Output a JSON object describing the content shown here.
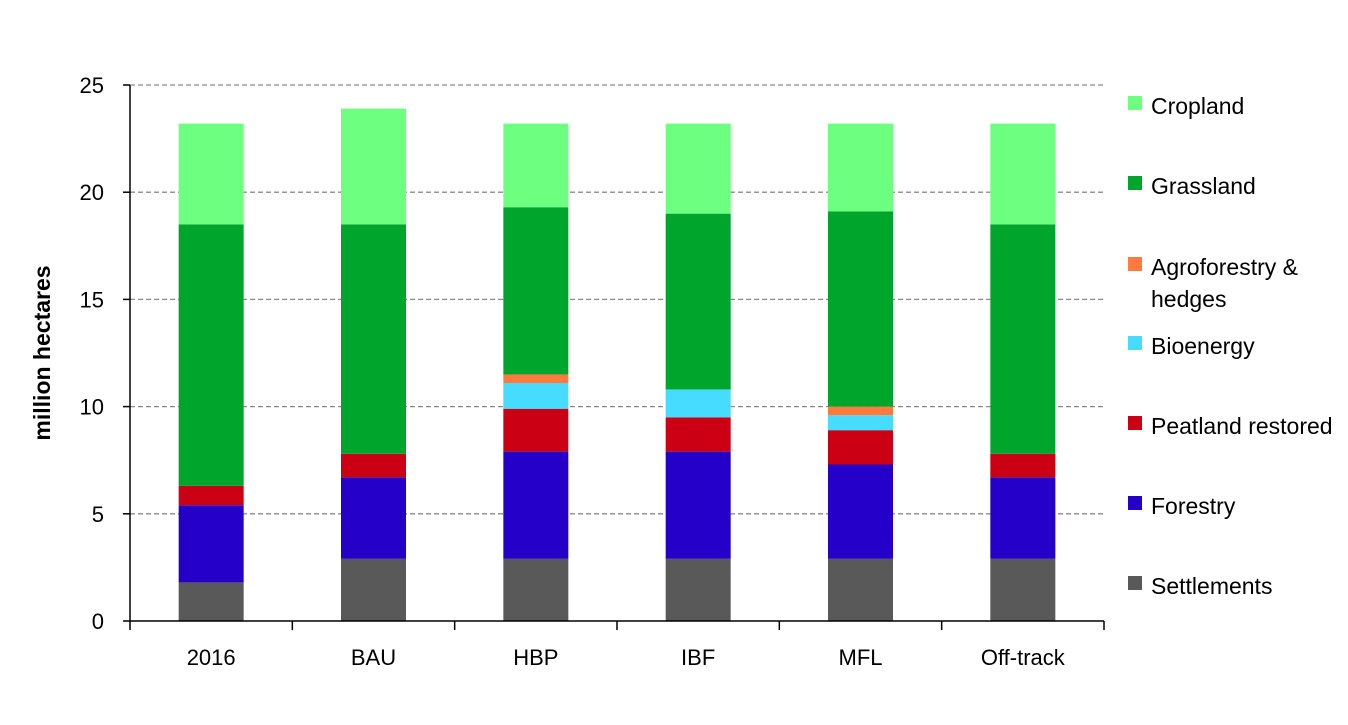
{
  "chart_data": {
    "type": "bar",
    "stacked": true,
    "ylabel": "million hectares",
    "ylim": [
      0,
      25
    ],
    "yticks": [
      0,
      5,
      10,
      15,
      20,
      25
    ],
    "grid": true,
    "legend_placement": "right",
    "categories": [
      "2016",
      "BAU",
      "HBP",
      "IBF",
      "MFL",
      "Off-track"
    ],
    "series": [
      {
        "name": "Settlements",
        "color": "#595959",
        "values": [
          1.8,
          2.9,
          2.9,
          2.9,
          2.9,
          2.9
        ]
      },
      {
        "name": "Forestry",
        "color": "#2400c8",
        "values": [
          3.6,
          3.8,
          5.0,
          5.0,
          4.4,
          3.8
        ]
      },
      {
        "name": "Peatland restored",
        "color": "#cc0014",
        "values": [
          0.9,
          1.1,
          2.0,
          1.6,
          1.6,
          1.1
        ]
      },
      {
        "name": "Bioenergy",
        "color": "#45dcff",
        "values": [
          0,
          0,
          1.2,
          1.3,
          0.7,
          0
        ]
      },
      {
        "name": "Agroforestry & hedges",
        "color": "#ff7a3c",
        "values": [
          0,
          0,
          0.4,
          0,
          0.4,
          0
        ]
      },
      {
        "name": "Grassland",
        "color": "#00a62c",
        "values": [
          12.2,
          10.7,
          7.8,
          8.2,
          9.1,
          10.7
        ]
      },
      {
        "name": "Cropland",
        "color": "#6dff80",
        "values": [
          4.7,
          5.4,
          3.9,
          4.2,
          4.1,
          4.7
        ]
      }
    ]
  }
}
